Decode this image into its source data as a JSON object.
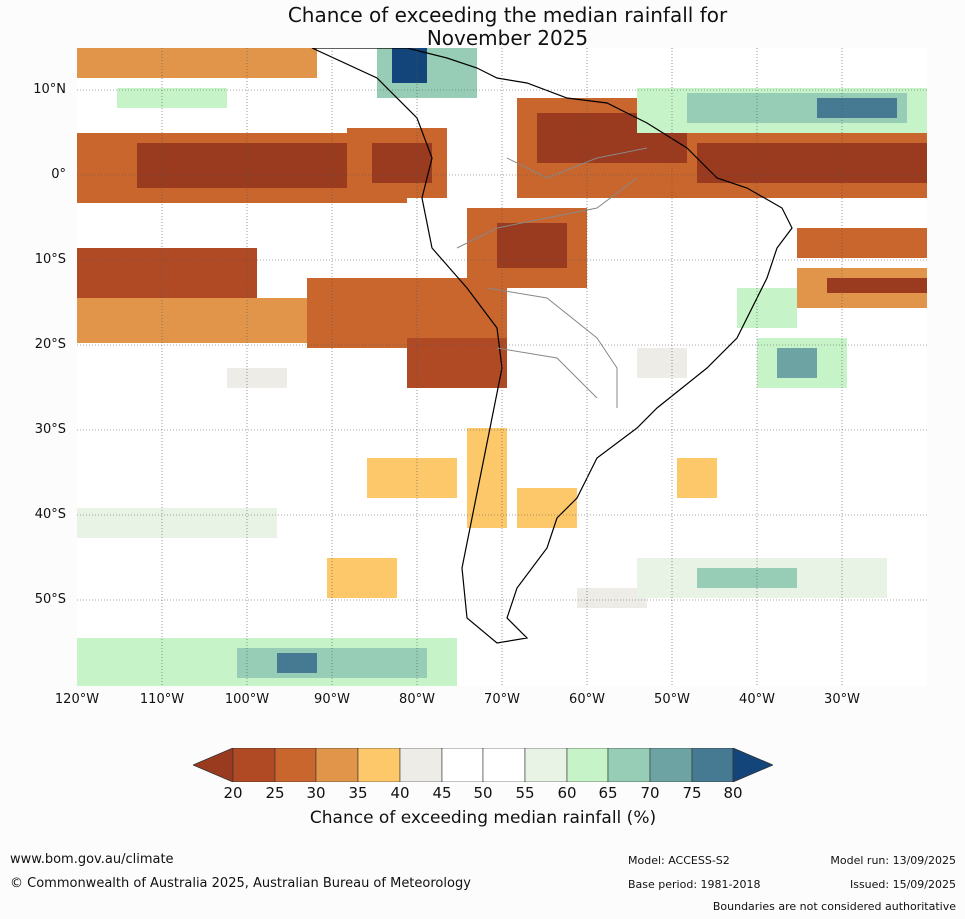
{
  "title": {
    "line1": "Chance of exceeding the median rainfall for",
    "line2": "November 2025"
  },
  "map": {
    "lat_labels": [
      "10°N",
      "0°",
      "10°S",
      "20°S",
      "30°S",
      "40°S",
      "50°S"
    ],
    "lon_labels": [
      "120°W",
      "110°W",
      "100°W",
      "90°W",
      "80°W",
      "70°W",
      "60°W",
      "50°W",
      "40°W",
      "30°W"
    ],
    "colors": {
      "ocean_white": "#ffffff",
      "c20": "#9a3a1f",
      "c25": "#b04a25",
      "c30": "#c8662e",
      "c35": "#e0954a",
      "c40": "#fcc86a",
      "c45": "#eeece6",
      "c55": "#e8f3e6",
      "c60": "#c6f3c8",
      "c65": "#97cdb6",
      "c70": "#6ea3a3",
      "c75": "#467a93",
      "c80": "#13457a"
    }
  },
  "colorbar": {
    "ticks": [
      "20",
      "25",
      "30",
      "35",
      "40",
      "45",
      "50",
      "55",
      "60",
      "65",
      "70",
      "75",
      "80"
    ],
    "colors": [
      "#9a3a1f",
      "#b04a25",
      "#c8662e",
      "#e0954a",
      "#fcc86a",
      "#eeece6",
      "#ffffff",
      "#ffffff",
      "#e8f3e6",
      "#c6f3c8",
      "#97cdb6",
      "#6ea3a3",
      "#467a93",
      "#13457a"
    ],
    "label": "Chance of exceeding median rainfall (%)"
  },
  "footer": {
    "website": "www.bom.gov.au/climate",
    "copyright": "© Commonwealth of Australia 2025, Australian Bureau of Meteorology",
    "model": "Model: ACCESS-S2",
    "base_period": "Base period: 1981-2018",
    "model_run": "Model run: 13/09/2025",
    "issued": "Issued: 15/09/2025",
    "disclaimer": "Boundaries are not considered authoritative"
  }
}
